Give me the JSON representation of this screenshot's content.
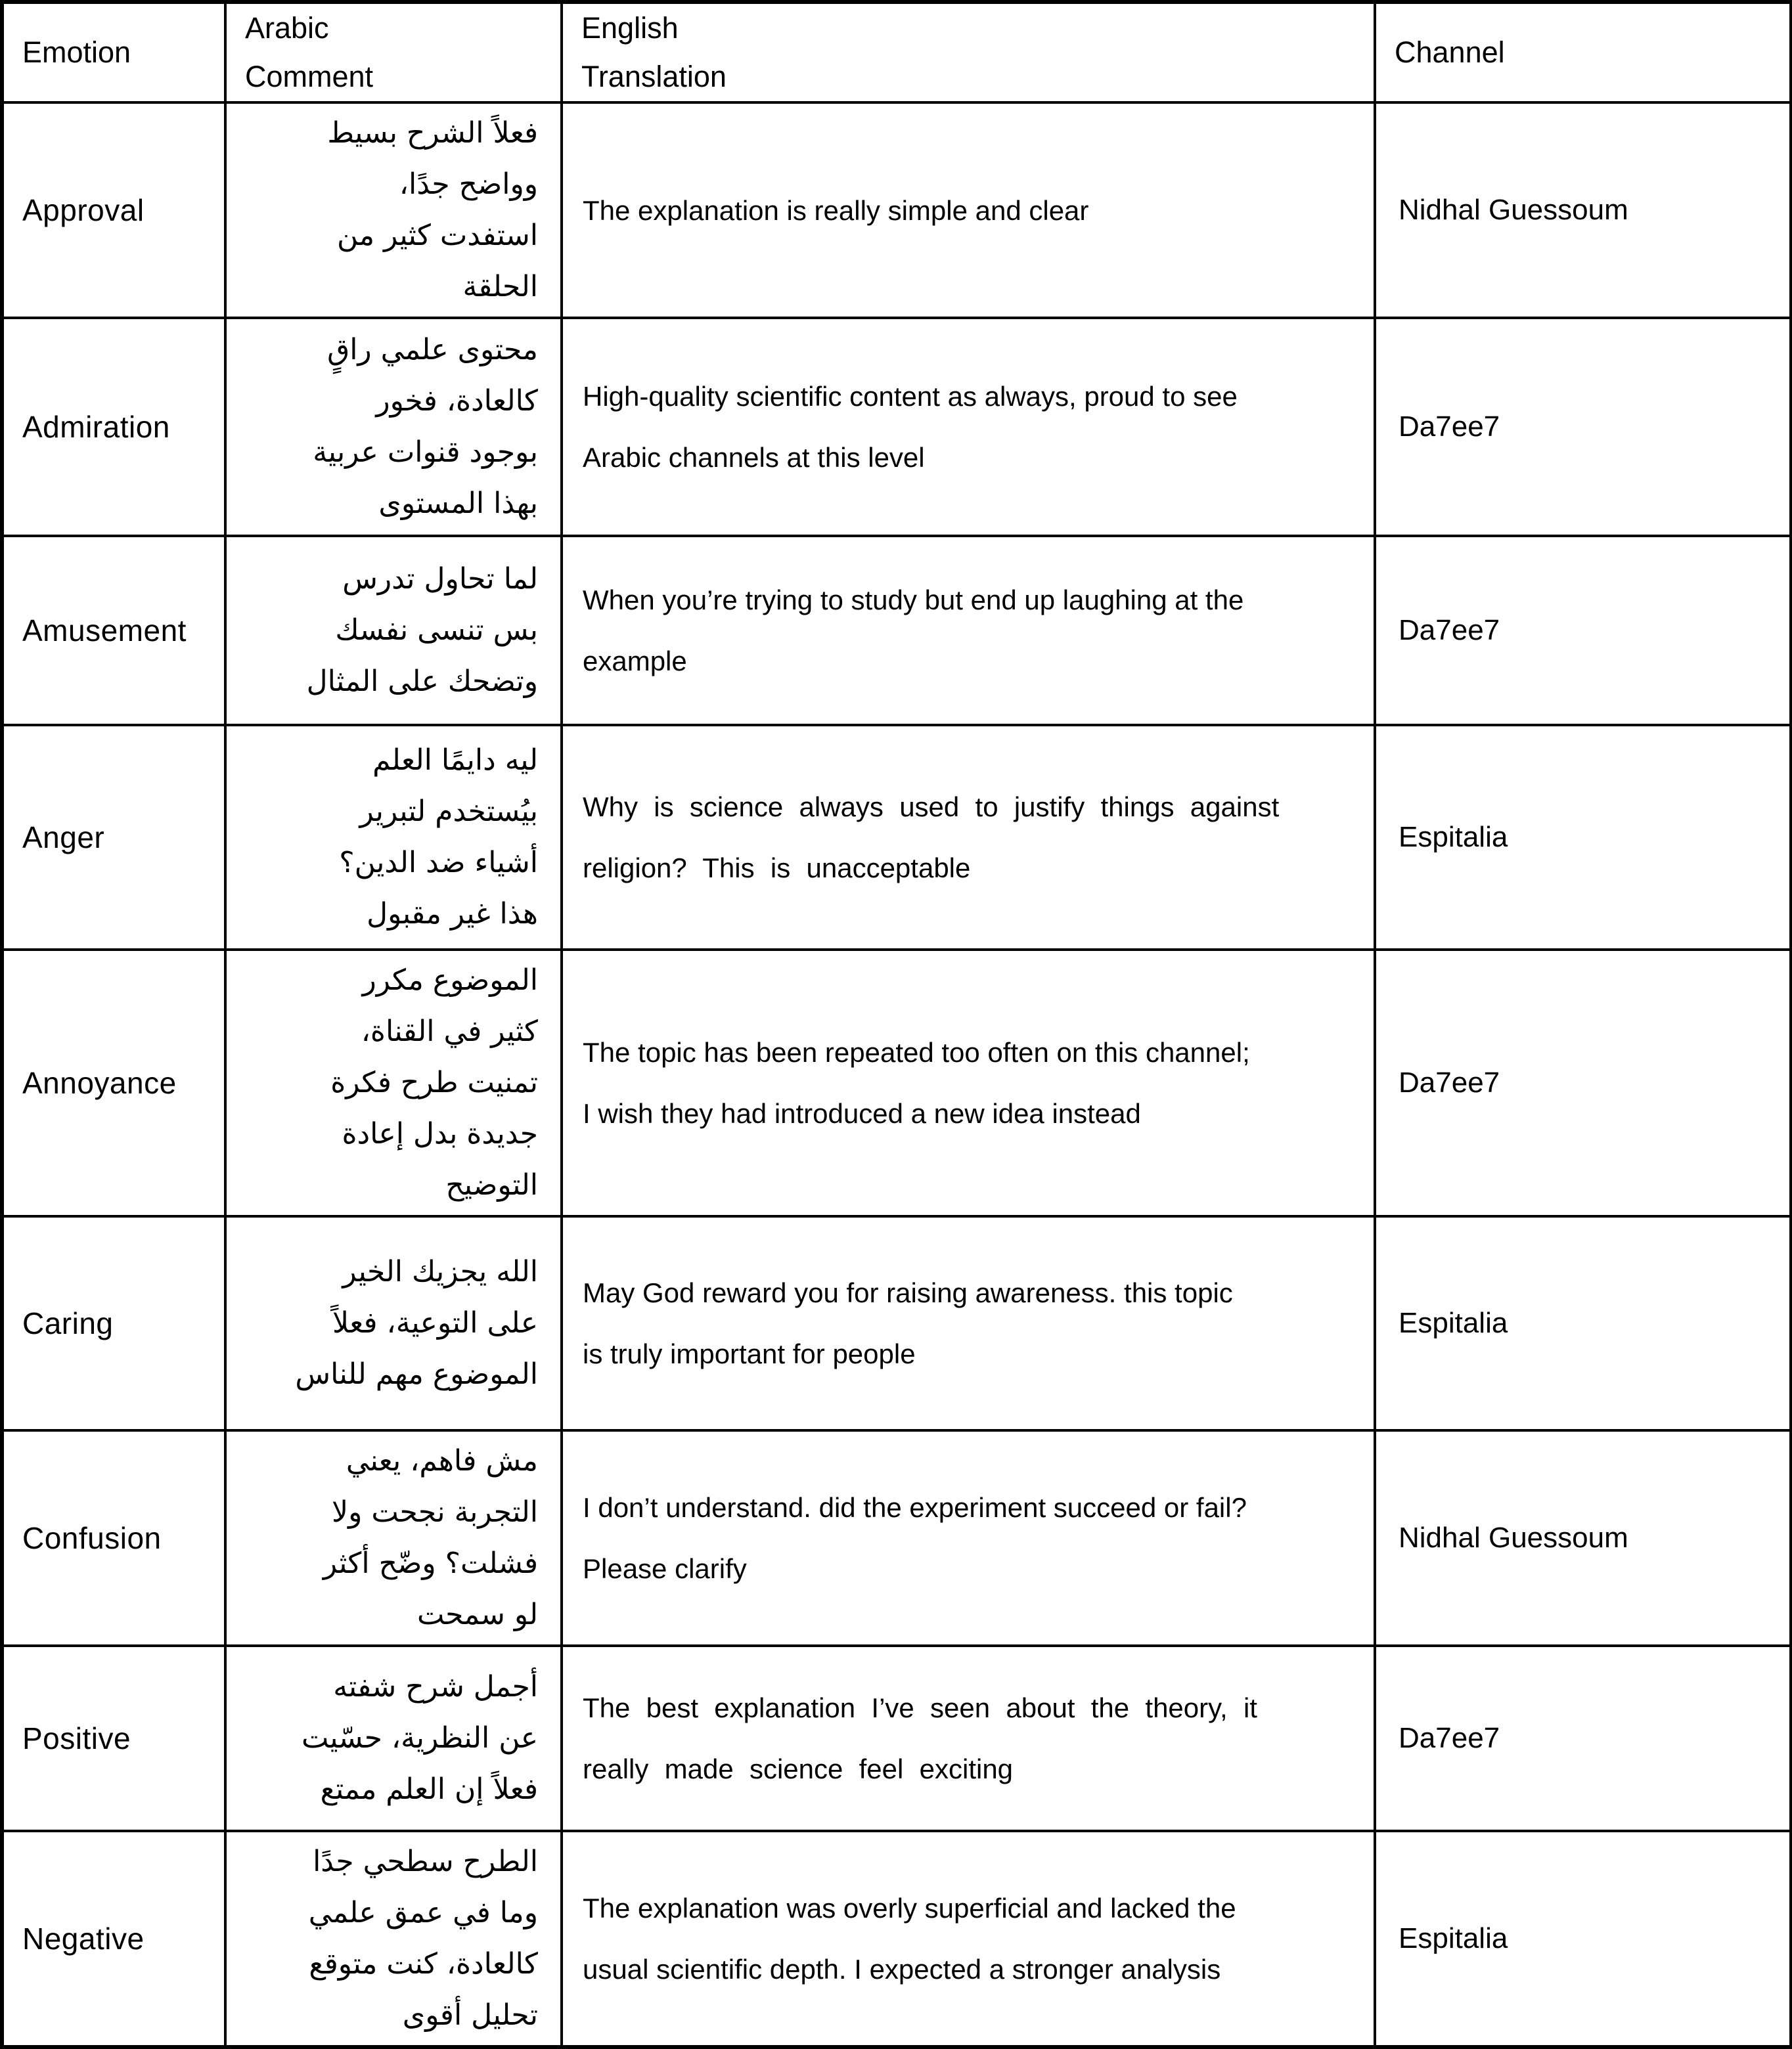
{
  "table": {
    "headers": [
      "Emotion",
      "Arabic\nComment",
      "English\nTranslation",
      "Channel"
    ],
    "rows": [
      {
        "emotion": "Approval",
        "arabic": "فعلاً الشرح بسيط\nوواضح جدًا،\nاستفدت كثير من\nالحلقة",
        "english": "The explanation is really simple and clear",
        "channel": "Nidhal Guessoum"
      },
      {
        "emotion": "Admiration",
        "arabic": "محتوى علمي راقٍ\nكالعادة، فخور\nبوجود قنوات عربية\nبهذا المستوى",
        "english": "High-quality scientific content as always, proud to see\nArabic channels at this level",
        "channel": "Da7ee7"
      },
      {
        "emotion": "Amusement",
        "arabic": "لما تحاول تدرس\nبس تنسى نفسك\nوتضحك على المثال",
        "english": "When you’re trying to study but end up laughing at the\nexample",
        "channel": "Da7ee7"
      },
      {
        "emotion": "Anger",
        "arabic": "ليه دايمًا العلم\nبيُستخدم لتبرير\nأشياء ضد الدين؟\nهذا غير مقبول",
        "english": "Why is science always used to justify things against\nreligion? This is unacceptable",
        "channel": "Espitalia"
      },
      {
        "emotion": "Annoyance",
        "arabic": "الموضوع مكرر\nكثير في القناة،\nتمنيت طرح فكرة\nجديدة بدل إعادة\nالتوضيح",
        "english": "The topic has been repeated too often on this channel;\nI wish they had introduced a new idea instead",
        "channel": "Da7ee7"
      },
      {
        "emotion": "Caring",
        "arabic": "الله يجزيك الخير\nعلى التوعية، فعلاً\nالموضوع مهم للناس",
        "english": "May God reward you for raising awareness. this topic\nis truly important for people",
        "channel": "Espitalia"
      },
      {
        "emotion": "Confusion",
        "arabic": "مش فاهم، يعني\nالتجربة نجحت ولا\nفشلت؟ وضّح أكثر\nلو سمحت",
        "english": "I don’t understand. did the experiment succeed or fail?\nPlease clarify",
        "channel": "Nidhal Guessoum"
      },
      {
        "emotion": "Positive",
        "arabic": "أجمل شرح شفته\nعن النظرية، حسّيت\nفعلاً إن العلم ممتع",
        "english": "The best explanation I’ve seen about the theory, it\nreally made science feel exciting",
        "channel": "Da7ee7"
      },
      {
        "emotion": "Negative",
        "arabic": "الطرح سطحي جدًا\nوما في عمق علمي\nكالعادة، كنت متوقع\nتحليل أقوى",
        "english": "The explanation was overly superficial and lacked the\nusual scientific depth. I expected a stronger analysis",
        "channel": "Espitalia"
      }
    ]
  }
}
